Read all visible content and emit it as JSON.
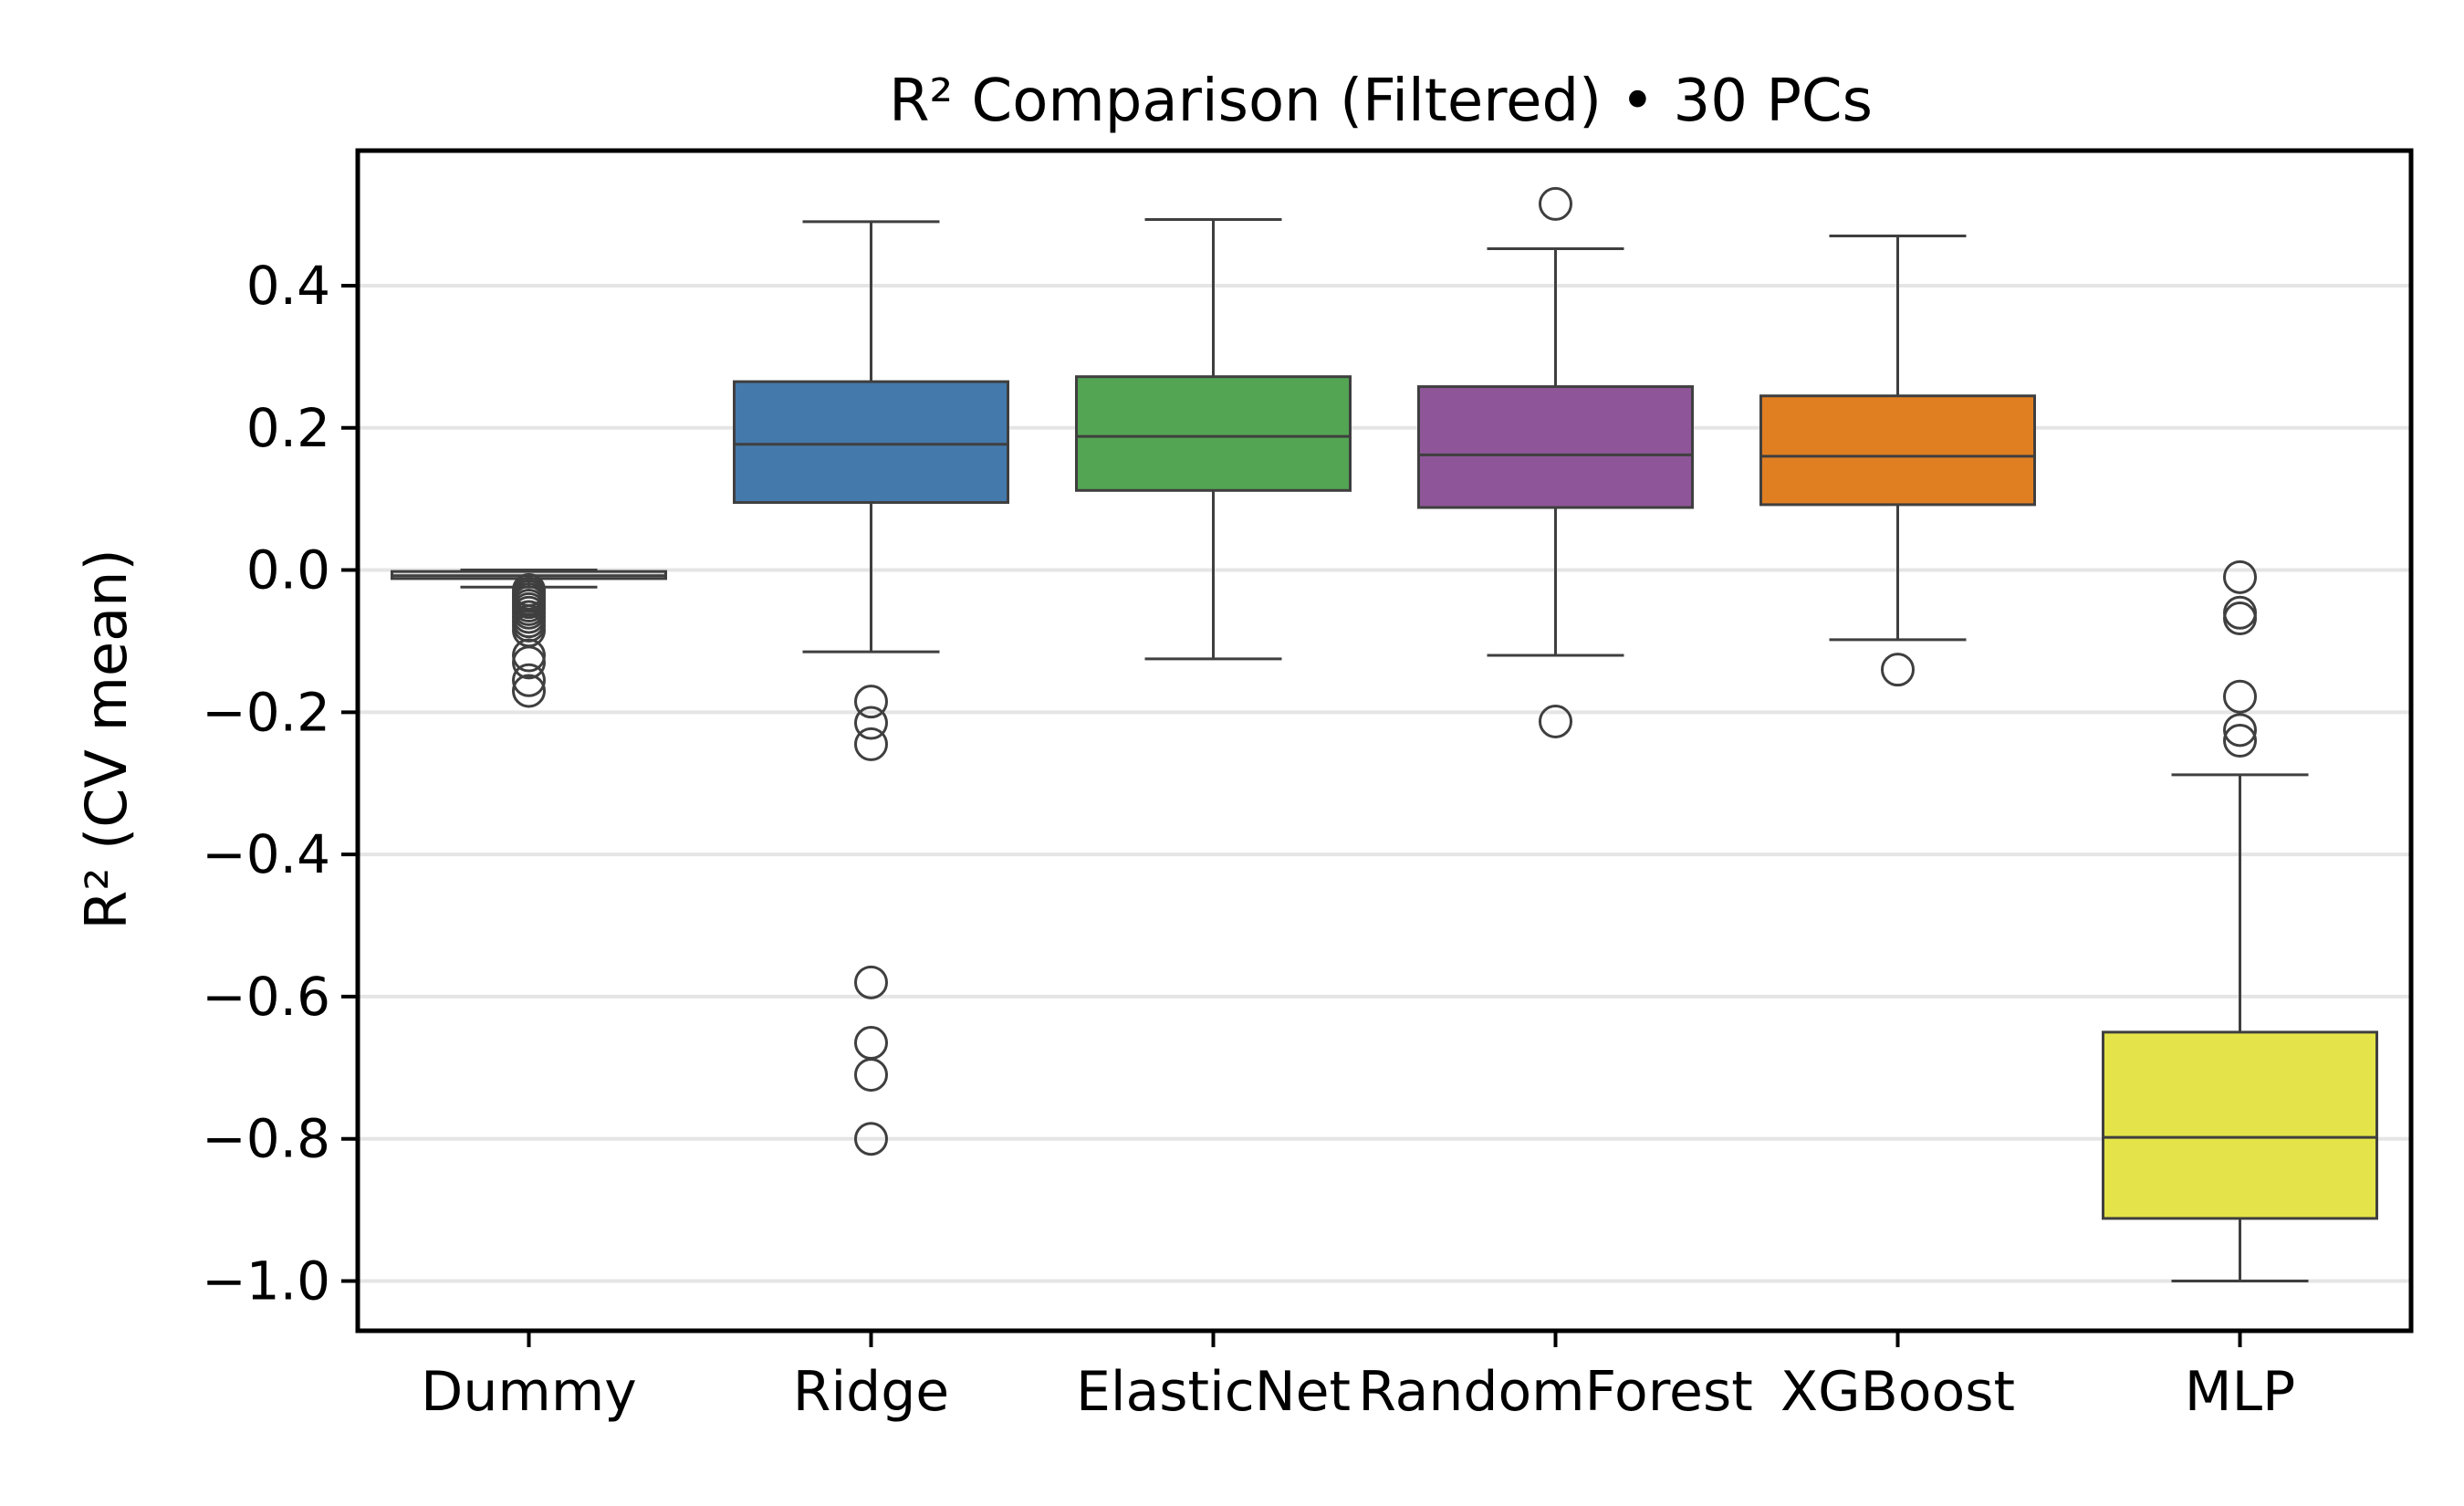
{
  "chart_data": {
    "type": "box",
    "title": "R² Comparison (Filtered) • 30 PCs",
    "xlabel": "",
    "ylabel": "R² (CV mean)",
    "ylim": [
      -1.07,
      0.59
    ],
    "yticks": [
      0.4,
      0.2,
      0.0,
      -0.2,
      -0.4,
      -0.6,
      -0.8,
      -1.0
    ],
    "ytick_labels": [
      "0.4",
      "0.2",
      "0.0",
      "−0.2",
      "−0.4",
      "−0.6",
      "−0.8",
      "−1.0"
    ],
    "grid": "horizontal",
    "categories": [
      "Dummy",
      "Ridge",
      "ElasticNet",
      "RandomForest",
      "XGBoost",
      "MLP"
    ],
    "boxes": [
      {
        "category": "Dummy",
        "color": "#d9d9d9",
        "whisker_low": -0.024,
        "q1": -0.012,
        "median": -0.008,
        "q3": -0.002,
        "whisker_high": 0.0,
        "outliers": [
          -0.028,
          -0.033,
          -0.037,
          -0.041,
          -0.045,
          -0.05,
          -0.055,
          -0.06,
          -0.066,
          -0.072,
          -0.078,
          -0.085,
          -0.12,
          -0.13,
          -0.155,
          -0.17
        ]
      },
      {
        "category": "Ridge",
        "color": "#4479ab",
        "whisker_low": -0.115,
        "q1": 0.095,
        "median": 0.177,
        "q3": 0.265,
        "whisker_high": 0.49,
        "outliers": [
          -0.185,
          -0.215,
          -0.245,
          -0.58,
          -0.665,
          -0.71,
          -0.8
        ]
      },
      {
        "category": "ElasticNet",
        "color": "#53a553",
        "whisker_low": -0.125,
        "q1": 0.112,
        "median": 0.188,
        "q3": 0.272,
        "whisker_high": 0.493,
        "outliers": []
      },
      {
        "category": "RandomForest",
        "color": "#8e5698",
        "whisker_low": -0.12,
        "q1": 0.088,
        "median": 0.162,
        "q3": 0.258,
        "whisker_high": 0.452,
        "outliers": [
          0.515,
          -0.213
        ]
      },
      {
        "category": "XGBoost",
        "color": "#e07f22",
        "whisker_low": -0.098,
        "q1": 0.092,
        "median": 0.16,
        "q3": 0.245,
        "whisker_high": 0.47,
        "outliers": [
          -0.14
        ]
      },
      {
        "category": "MLP",
        "color": "#e4e44a",
        "whisker_low": -1.0,
        "q1": -0.912,
        "median": -0.798,
        "q3": -0.65,
        "whisker_high": -0.288,
        "outliers": [
          -0.01,
          -0.06,
          -0.068,
          -0.178,
          -0.225,
          -0.24
        ]
      }
    ]
  }
}
